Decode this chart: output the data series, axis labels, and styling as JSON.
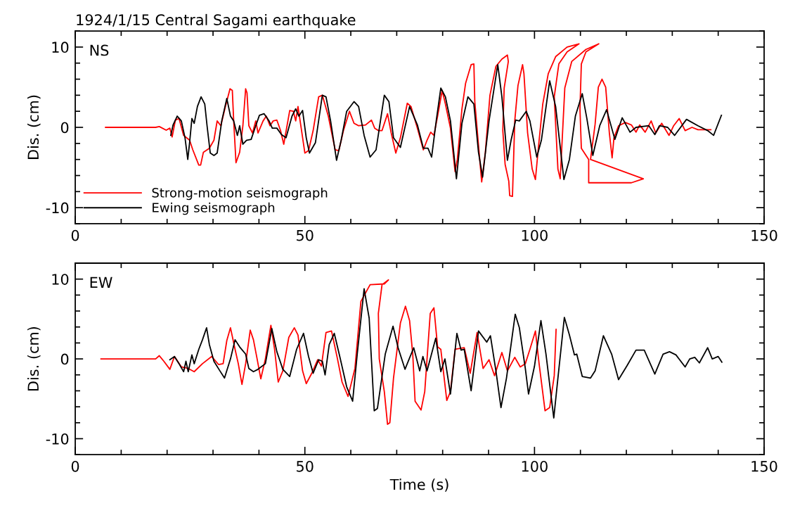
{
  "chart_data": [
    {
      "type": "line",
      "title": "1924/1/15 Central Sagami earthquake",
      "ylabel": "Dis. (cm)",
      "annotations": [
        "NS"
      ],
      "legend": "bottom left",
      "xlim": [
        0,
        150
      ],
      "ylim": [
        -12,
        12
      ],
      "xticks": [
        0,
        {
          "value": 10,
          "label": null
        },
        {
          "value": 20,
          "label": null
        },
        {
          "value": 30,
          "label": null
        },
        {
          "value": 40,
          "label": null
        },
        50,
        {
          "value": 60,
          "label": null
        },
        {
          "value": 70,
          "label": null
        },
        {
          "value": 80,
          "label": null
        },
        {
          "value": 90,
          "label": null
        },
        100,
        {
          "value": 110,
          "label": null
        },
        {
          "value": 120,
          "label": null
        },
        {
          "value": 130,
          "label": null
        },
        {
          "value": 140,
          "label": null
        },
        150
      ],
      "yticks": [
        {
          "value": -12,
          "label": null
        },
        -10,
        {
          "value": -8,
          "label": null
        },
        {
          "value": -6,
          "label": null
        },
        {
          "value": -4,
          "label": null
        },
        {
          "value": -2,
          "label": null
        },
        0,
        {
          "value": 2,
          "label": null
        },
        {
          "value": 4,
          "label": null
        },
        {
          "value": 6,
          "label": null
        },
        {
          "value": 8,
          "label": null
        },
        10,
        {
          "value": 12,
          "label": null
        }
      ],
      "series": [
        {
          "name": "Strong-motion seismograph",
          "color": "#ff0000",
          "x": [
            6.6,
            17.5,
            18.3,
            19.8,
            20.6,
            21.1,
            21.8,
            22.6,
            23.6,
            24.9,
            25.6,
            26.9,
            27.3,
            27.9,
            29.2,
            30.2,
            30.9,
            31.7,
            32.7,
            33.7,
            34.2,
            34.5,
            35.0,
            35.8,
            36.5,
            37.1,
            37.4,
            37.8,
            38.6,
            39.3,
            39.8,
            40.9,
            41.6,
            42.4,
            43.1,
            43.9,
            44.7,
            45.4,
            46.7,
            47.5,
            48.0,
            48.5,
            49.2,
            50.0,
            50.8,
            51.8,
            53.0,
            53.8,
            55.1,
            56.6,
            57.4,
            58.4,
            59.7,
            60.7,
            61.7,
            63.2,
            64.5,
            65.2,
            66.0,
            66.8,
            68.0,
            68.8,
            69.8,
            70.8,
            72.3,
            73.1,
            74.5,
            75.8,
            76.6,
            77.4,
            78.1,
            78.9,
            79.9,
            80.6,
            81.7,
            82.7,
            83.2,
            84.2,
            85.0,
            86.2,
            86.8,
            87.0,
            87.8,
            88.5,
            89.3,
            90.3,
            91.6,
            92.9,
            94.1,
            94.3,
            93.4,
            93.1,
            93.6,
            94.4,
            94.6,
            95.2,
            95.7,
            96.4,
            97.4,
            97.7,
            98.5,
            99.5,
            100.2,
            100.8,
            101.8,
            103.0,
            104.6,
            107.1,
            109.7,
            107.1,
            105.3,
            104.3,
            105.1,
            105.6,
            106.6,
            108.1,
            111.2,
            114.0,
            111.2,
            110.2,
            109.9,
            110.2,
            111.8,
            111.8,
            121.1,
            123.7,
            112.2,
            113.2,
            113.9,
            114.7,
            115.5,
            116.3,
            116.9,
            117.3,
            118.3,
            119.8,
            121.1,
            122.1,
            122.9,
            124.1,
            125.4,
            126.4,
            127.7,
            129.3,
            130.3,
            131.5,
            132.8,
            134.3,
            135.6,
            137.1,
            138.4
          ],
          "values": [
            0,
            0,
            0.1,
            -0.35,
            -0.1,
            -1.2,
            0.9,
            1.1,
            -1.0,
            -1.6,
            -2.8,
            -4.7,
            -4.7,
            -3.1,
            -2.6,
            -1.6,
            0.8,
            0.2,
            2.6,
            4.8,
            4.6,
            0.8,
            -4.4,
            -3.1,
            0.2,
            4.8,
            4.3,
            0.2,
            -0.7,
            0.8,
            -0.7,
            0.8,
            1.4,
            0.2,
            0.8,
            0.9,
            -0.4,
            -2.1,
            2.1,
            2.0,
            0.8,
            2.6,
            -0.1,
            -3.2,
            -2.9,
            -0.4,
            3.8,
            4.0,
            1.4,
            -2.8,
            -2.9,
            -0.4,
            2.0,
            0.5,
            0.2,
            0.3,
            0.9,
            -0.1,
            -0.4,
            -0.4,
            1.7,
            -0.7,
            -3.2,
            -1.3,
            3.0,
            2.6,
            -0.1,
            -2.8,
            -1.6,
            -0.6,
            -1.0,
            1.4,
            4.6,
            2.9,
            -0.1,
            -5.5,
            -4.0,
            2.3,
            5.5,
            7.8,
            7.9,
            3.2,
            -2.2,
            -6.8,
            -3.1,
            4.0,
            7.6,
            8.5,
            9.0,
            8.2,
            4.9,
            -0.4,
            -4.6,
            -6.7,
            -8.5,
            -8.6,
            0.8,
            5.2,
            7.8,
            6.7,
            -0.7,
            -5.2,
            -6.5,
            -2.8,
            2.9,
            6.7,
            8.8,
            10.0,
            10.4,
            9.4,
            7.9,
            3.8,
            -5.2,
            -6.4,
            4.9,
            8.2,
            9.7,
            10.4,
            9.4,
            7.9,
            2.3,
            -2.6,
            -4.0,
            -6.9,
            -6.9,
            -6.4,
            -4.0,
            0.4,
            5.0,
            6.0,
            5.0,
            -0.7,
            -3.8,
            -1.3,
            0.2,
            0.6,
            0.3,
            -0.6,
            0.3,
            -0.6,
            0.8,
            -0.7,
            0.5,
            -1.0,
            0.2,
            1.1,
            -0.4,
            0,
            -0.3,
            -0.3,
            -0.3
          ]
        },
        {
          "name": "Ewing seismograph",
          "color": "#000000",
          "x": [
            20.8,
            21.3,
            22.2,
            23.1,
            23.9,
            24.5,
            24.9,
            25.4,
            25.9,
            26.6,
            27.4,
            28.2,
            28.7,
            29.4,
            30.2,
            30.9,
            31.9,
            33.0,
            33.8,
            34.5,
            35.3,
            35.8,
            36.5,
            37.3,
            38.3,
            39.3,
            40.1,
            41.1,
            42.2,
            42.9,
            43.9,
            44.9,
            45.9,
            47.2,
            48.0,
            48.7,
            49.5,
            50.3,
            51.0,
            52.3,
            53.8,
            54.6,
            55.6,
            56.9,
            57.9,
            59.1,
            60.7,
            61.7,
            62.9,
            64.2,
            65.5,
            67.3,
            68.3,
            69.3,
            70.8,
            72.8,
            74.5,
            75.8,
            76.8,
            77.6,
            78.6,
            79.6,
            80.6,
            81.7,
            83.0,
            84.2,
            85.5,
            86.8,
            87.8,
            88.7,
            90.1,
            92.0,
            92.9,
            94.1,
            94.9,
            95.9,
            96.7,
            98.2,
            99.0,
            100.5,
            101.5,
            103.3,
            104.6,
            106.4,
            107.6,
            108.9,
            110.4,
            111.4,
            112.7,
            114.2,
            115.7,
            117.5,
            119.1,
            120.8,
            122.1,
            124.9,
            126.2,
            127.2,
            129.0,
            130.5,
            133.1,
            135.6,
            137.7,
            139.0,
            140.7
          ],
          "values": [
            -1.0,
            0.3,
            1.4,
            0.8,
            -1.3,
            -4.0,
            -1.9,
            1.1,
            0.5,
            2.6,
            3.8,
            2.9,
            0.2,
            -3.2,
            -3.5,
            -3.2,
            0.8,
            3.6,
            1.4,
            0.8,
            -1.0,
            0.2,
            -2.1,
            -1.6,
            -1.5,
            0.2,
            1.5,
            1.7,
            0.8,
            -0.1,
            -0.1,
            -0.9,
            -1.3,
            1.4,
            2.3,
            1.4,
            2.1,
            -1.3,
            -3.2,
            -1.9,
            4.0,
            3.8,
            0.8,
            -4.1,
            -1.6,
            2.0,
            3.2,
            2.6,
            -1.0,
            -3.7,
            -2.8,
            4.0,
            3.2,
            -1.3,
            -2.5,
            2.6,
            0.3,
            -2.6,
            -2.6,
            -3.7,
            0.8,
            4.9,
            3.8,
            0.8,
            -6.4,
            0.5,
            3.8,
            2.9,
            -3.1,
            -6.2,
            0.8,
            7.8,
            3.8,
            -4.1,
            -1.6,
            0.9,
            0.8,
            2.0,
            0.8,
            -3.7,
            -1.6,
            5.8,
            2.6,
            -6.5,
            -4.0,
            1.4,
            4.2,
            1.1,
            -3.5,
            0.2,
            2.2,
            -1.5,
            1.2,
            -0.6,
            0,
            0.2,
            -0.9,
            0.2,
            0,
            -1.0,
            1.0,
            0.2,
            -0.4,
            -1.0,
            1.5
          ]
        }
      ]
    },
    {
      "type": "line",
      "xlabel": "Time (s)",
      "ylabel": "Dis. (cm)",
      "annotations": [
        "EW"
      ],
      "xlim": [
        0,
        150
      ],
      "ylim": [
        -12,
        12
      ],
      "xticks": [
        0,
        {
          "value": 10,
          "label": null
        },
        {
          "value": 20,
          "label": null
        },
        {
          "value": 30,
          "label": null
        },
        {
          "value": 40,
          "label": null
        },
        50,
        {
          "value": 60,
          "label": null
        },
        {
          "value": 70,
          "label": null
        },
        {
          "value": 80,
          "label": null
        },
        {
          "value": 90,
          "label": null
        },
        100,
        {
          "value": 110,
          "label": null
        },
        {
          "value": 120,
          "label": null
        },
        {
          "value": 130,
          "label": null
        },
        {
          "value": 140,
          "label": null
        },
        150
      ],
      "yticks": [
        {
          "value": -12,
          "label": null
        },
        -10,
        {
          "value": -8,
          "label": null
        },
        {
          "value": -6,
          "label": null
        },
        {
          "value": -4,
          "label": null
        },
        {
          "value": -2,
          "label": null
        },
        0,
        {
          "value": 2,
          "label": null
        },
        {
          "value": 4,
          "label": null
        },
        {
          "value": 6,
          "label": null
        },
        {
          "value": 8,
          "label": null
        },
        10,
        {
          "value": 12,
          "label": null
        }
      ],
      "series": [
        {
          "color": "#ff0000",
          "x": [
            5.6,
            17.5,
            18.3,
            19.3,
            20.6,
            21.6,
            23.1,
            24.6,
            25.9,
            27.7,
            29.7,
            31.2,
            32.2,
            33.0,
            33.8,
            34.8,
            35.5,
            36.3,
            37.1,
            38.1,
            38.8,
            39.6,
            40.4,
            41.4,
            42.6,
            43.4,
            44.2,
            45.2,
            46.5,
            47.7,
            48.5,
            49.5,
            50.3,
            51.5,
            52.8,
            53.6,
            54.6,
            55.8,
            57.1,
            58.1,
            59.4,
            60.9,
            62.2,
            64.2,
            67.3,
            68.2,
            66.8,
            66.0,
            66.2,
            67.3,
            68.0,
            68.5,
            69.3,
            70.8,
            71.9,
            72.8,
            73.5,
            74.0,
            75.3,
            76.1,
            77.3,
            78.1,
            78.9,
            79.6,
            80.9,
            81.7,
            82.7,
            84.7,
            86.0,
            87.5,
            88.8,
            90.1,
            91.3,
            92.9,
            94.1,
            95.7,
            96.9,
            98.0,
            99.0,
            100.2,
            101.0,
            102.3,
            103.3,
            104.3,
            104.7
          ],
          "values": [
            0,
            0,
            0.4,
            -0.3,
            -1.3,
            0.3,
            -1.0,
            -1.2,
            -1.6,
            -0.6,
            0.3,
            -0.7,
            -0.6,
            2.3,
            3.9,
            1.2,
            -0.6,
            -3.2,
            -0.6,
            3.6,
            2.4,
            0,
            -2.5,
            0,
            4.2,
            1.2,
            -2.9,
            -1.5,
            2.7,
            3.9,
            3.0,
            -1.5,
            -3.1,
            -1.8,
            -0.1,
            -0.9,
            3.3,
            3.5,
            0,
            -2.9,
            -4.7,
            -1.2,
            7.2,
            9.3,
            9.4,
            9.9,
            9.3,
            5.7,
            0,
            -4.1,
            -8.2,
            -8.0,
            -2.4,
            4.5,
            6.6,
            4.8,
            0.5,
            -5.3,
            -6.4,
            -4.1,
            5.7,
            6.4,
            1.5,
            1.2,
            -5.2,
            -4.1,
            1.2,
            1.4,
            -1.8,
            3.3,
            -1.2,
            -0.1,
            -2.1,
            0.8,
            -1.5,
            0.2,
            -1.0,
            -0.6,
            1.2,
            3.5,
            -0.6,
            -6.5,
            -6.1,
            -2.1,
            3.7
          ]
        },
        {
          "color": "#000000",
          "x": [
            20.6,
            21.6,
            22.6,
            23.6,
            24.1,
            24.6,
            25.4,
            25.9,
            26.9,
            27.7,
            28.6,
            29.2,
            30.2,
            31.5,
            32.5,
            33.8,
            34.8,
            35.8,
            37.1,
            37.8,
            38.8,
            39.8,
            41.4,
            42.8,
            43.9,
            45.2,
            46.7,
            48.2,
            49.7,
            50.8,
            51.8,
            53.0,
            53.8,
            54.4,
            55.3,
            56.4,
            57.6,
            59.1,
            60.4,
            61.4,
            62.9,
            64.0,
            65.1,
            65.8,
            67.5,
            69.2,
            70.3,
            71.8,
            73.7,
            75.0,
            75.7,
            76.6,
            78.5,
            79.6,
            80.5,
            81.7,
            83.1,
            84.0,
            84.7,
            86.2,
            87.8,
            89.6,
            90.4,
            91.6,
            92.7,
            93.9,
            95.8,
            96.7,
            98.0,
            98.7,
            100.0,
            101.4,
            102.5,
            104.2,
            105.1,
            106.5,
            107.6,
            108.7,
            109.2,
            110.4,
            112.2,
            113.2,
            115.0,
            116.8,
            118.3,
            120.1,
            122.1,
            123.9,
            126.2,
            128.0,
            129.4,
            130.8,
            132.8,
            133.8,
            134.9,
            135.9,
            137.7,
            138.7,
            140.0,
            140.8
          ],
          "values": [
            -0.1,
            0.3,
            -0.6,
            -1.6,
            -0.3,
            -1.6,
            0.5,
            -0.6,
            1.2,
            2.4,
            3.9,
            1.8,
            -0.3,
            -1.5,
            -2.4,
            0,
            2.4,
            1.5,
            0.6,
            -1.2,
            -1.6,
            -1.3,
            -0.6,
            3.8,
            0.9,
            -1.3,
            -2.2,
            1.2,
            3.2,
            0.3,
            -1.8,
            -0.1,
            -0.3,
            -2.0,
            1.8,
            3.2,
            0.3,
            -3.5,
            -5.3,
            0.6,
            8.8,
            5.1,
            -6.5,
            -6.2,
            0.6,
            4.1,
            1.4,
            -1.3,
            1.4,
            -1.5,
            0.3,
            -1.5,
            2.6,
            -1.6,
            0,
            -4.4,
            3.2,
            1.1,
            1.2,
            -4.0,
            3.5,
            2.1,
            2.9,
            -1.5,
            -6.1,
            -2.4,
            5.6,
            3.9,
            -1.2,
            -4.4,
            -0.9,
            4.8,
            0.6,
            -7.4,
            -2.4,
            5.2,
            3.0,
            0.5,
            0.6,
            -2.2,
            -2.4,
            -1.5,
            2.9,
            0.6,
            -2.6,
            -0.9,
            1.1,
            1.1,
            -1.9,
            0.6,
            0.9,
            0.5,
            -1.0,
            0,
            0.2,
            -0.5,
            1.4,
            0,
            0.3,
            -0.4
          ]
        }
      ]
    }
  ]
}
